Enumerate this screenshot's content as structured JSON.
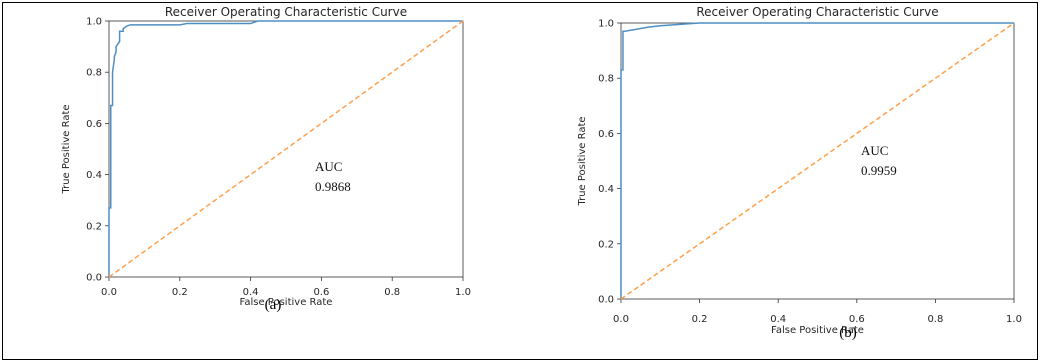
{
  "chart_data": [
    {
      "type": "line",
      "title": "Receiver Operating Characteristic Curve",
      "xlabel": "False Positive Rate",
      "ylabel": "True Positive Rate",
      "xlim": [
        0,
        1
      ],
      "ylim": [
        0,
        1
      ],
      "xticks": [
        "0.0",
        "0.2",
        "0.4",
        "0.6",
        "0.8",
        "1.0"
      ],
      "yticks": [
        "0.0",
        "0.2",
        "0.4",
        "0.6",
        "0.8",
        "1.0"
      ],
      "annotation": [
        "AUC",
        "0.9868"
      ],
      "caption": "(a)",
      "series": [
        {
          "color": "#4e8fc4",
          "style": "solid",
          "x": [
            0,
            0,
            0.005,
            0.005,
            0.01,
            0.01,
            0.012,
            0.015,
            0.015,
            0.02,
            0.02,
            0.025,
            0.03,
            0.03,
            0.04,
            0.04,
            0.05,
            0.06,
            0.08,
            0.1,
            0.2,
            0.22,
            0.4,
            0.42,
            1.0
          ],
          "y": [
            0,
            0.27,
            0.27,
            0.67,
            0.67,
            0.8,
            0.82,
            0.85,
            0.86,
            0.88,
            0.9,
            0.91,
            0.92,
            0.96,
            0.96,
            0.97,
            0.98,
            0.985,
            0.985,
            0.985,
            0.985,
            0.99,
            0.99,
            1.0,
            1.0
          ]
        },
        {
          "color": "#ff9f4a",
          "style": "dashed",
          "x": [
            0,
            1
          ],
          "y": [
            0,
            1
          ]
        }
      ]
    },
    {
      "type": "line",
      "title": "Receiver Operating Characteristic Curve",
      "xlabel": "False Positive Rate",
      "ylabel": "True Positive Rate",
      "xlim": [
        0,
        1
      ],
      "ylim": [
        0,
        1
      ],
      "xticks": [
        "0.0",
        "0.2",
        "0.4",
        "0.6",
        "0.8",
        "1.0"
      ],
      "yticks": [
        "0.0",
        "0.2",
        "0.4",
        "0.6",
        "0.8",
        "1.0"
      ],
      "annotation": [
        "AUC",
        "0.9959"
      ],
      "caption": "(b)",
      "series": [
        {
          "color": "#4e8fc4",
          "style": "solid",
          "x": [
            0,
            0,
            0.005,
            0.005,
            0.01,
            0.01,
            0.03,
            0.05,
            0.07,
            0.1,
            0.15,
            0.2,
            1.0
          ],
          "y": [
            0,
            0.83,
            0.83,
            0.97,
            0.97,
            0.97,
            0.975,
            0.98,
            0.985,
            0.99,
            0.995,
            1.0,
            1.0
          ]
        },
        {
          "color": "#ff9f4a",
          "style": "dashed",
          "x": [
            0,
            1
          ],
          "y": [
            0,
            1
          ]
        }
      ]
    }
  ]
}
